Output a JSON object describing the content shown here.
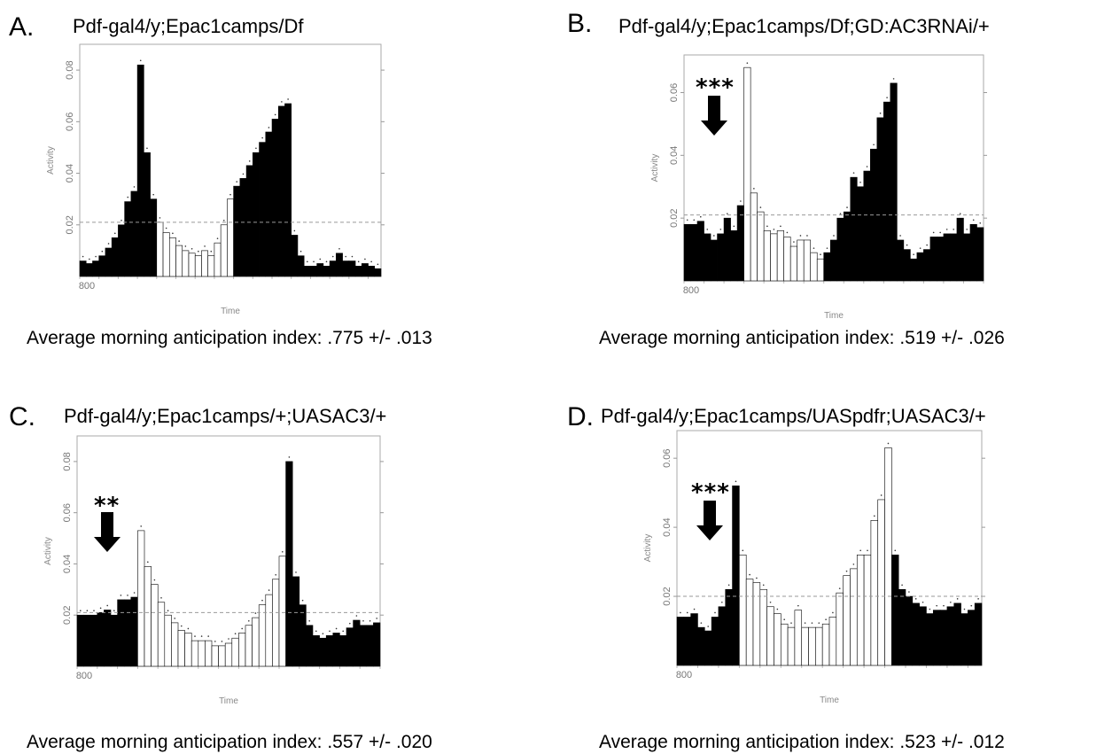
{
  "figure": {
    "panels": [
      {
        "letter": "A.",
        "title": "Pdf-gal4/y;Epac1camps/Df",
        "index_text": "Average morning anticipation index: .775 +/- .013",
        "significance": ""
      },
      {
        "letter": "B.",
        "title": "Pdf-gal4/y;Epac1camps/Df;GD:AC3RNAi/+",
        "index_text": "Average morning anticipation index: .519 +/- .026",
        "significance": "***"
      },
      {
        "letter": "C.",
        "title": "Pdf-gal4/y;Epac1camps/+;UASAC3/+",
        "index_text": "Average morning anticipation index: .557 +/- .020",
        "significance": "**"
      },
      {
        "letter": "D.",
        "title": "Pdf-gal4/y;Epac1camps/UASpdfr;UASAC3/+",
        "index_text": "Average morning anticipation index: .523 +/- .012",
        "significance": "***"
      }
    ]
  },
  "chart_data": [
    {
      "type": "bar",
      "title": "Pdf-gal4/y;Epac1camps/Df",
      "xlabel": "Time",
      "ylabel": "Activity",
      "x_tick_label": "800",
      "y_ticks": [
        "0.02",
        "0.04",
        "0.06",
        "0.08"
      ],
      "y_tick_values": [
        0.02,
        0.04,
        0.06,
        0.08
      ],
      "ylim": [
        0,
        0.09
      ],
      "reference_line": 0.021,
      "light_phase_bars": [
        12,
        24
      ],
      "values": [
        0.006,
        0.005,
        0.006,
        0.008,
        0.011,
        0.015,
        0.02,
        0.029,
        0.033,
        0.082,
        0.048,
        0.03,
        0.021,
        0.017,
        0.015,
        0.012,
        0.01,
        0.009,
        0.008,
        0.01,
        0.008,
        0.013,
        0.02,
        0.03,
        0.035,
        0.038,
        0.043,
        0.048,
        0.052,
        0.056,
        0.061,
        0.066,
        0.067,
        0.016,
        0.008,
        0.004,
        0.004,
        0.005,
        0.004,
        0.006,
        0.009,
        0.006,
        0.006,
        0.004,
        0.005,
        0.004,
        0.003
      ],
      "colors": {
        "dark": "#000000",
        "light": "#ffffff",
        "ref": "#999999"
      }
    },
    {
      "type": "bar",
      "title": "Pdf-gal4/y;Epac1camps/Df;GD:AC3RNAi/+",
      "xlabel": "Time",
      "ylabel": "Activity",
      "x_tick_label": "800",
      "y_ticks": [
        "0.02",
        "0.04",
        "0.06"
      ],
      "y_tick_values": [
        0.02,
        0.04,
        0.06
      ],
      "ylim": [
        0,
        0.072
      ],
      "reference_line": 0.021,
      "light_phase_bars": [
        9,
        21
      ],
      "values": [
        0.018,
        0.018,
        0.019,
        0.015,
        0.013,
        0.015,
        0.02,
        0.016,
        0.024,
        0.068,
        0.028,
        0.022,
        0.016,
        0.015,
        0.016,
        0.014,
        0.011,
        0.013,
        0.013,
        0.009,
        0.007,
        0.009,
        0.013,
        0.02,
        0.022,
        0.033,
        0.03,
        0.035,
        0.042,
        0.052,
        0.057,
        0.063,
        0.013,
        0.01,
        0.007,
        0.009,
        0.01,
        0.014,
        0.014,
        0.015,
        0.015,
        0.02,
        0.015,
        0.018,
        0.017
      ],
      "colors": {
        "dark": "#000000",
        "light": "#ffffff",
        "ref": "#999999"
      }
    },
    {
      "type": "bar",
      "title": "Pdf-gal4/y;Epac1camps/+;UASAC3/+",
      "xlabel": "Time",
      "ylabel": "Activity",
      "x_tick_label": "800",
      "y_ticks": [
        "0.02",
        "0.04",
        "0.06",
        "0.08"
      ],
      "y_tick_values": [
        0.02,
        0.04,
        0.06,
        0.08
      ],
      "ylim": [
        0,
        0.09
      ],
      "reference_line": 0.021,
      "light_phase_bars": [
        9,
        31
      ],
      "values": [
        0.02,
        0.02,
        0.02,
        0.021,
        0.022,
        0.02,
        0.026,
        0.026,
        0.027,
        0.053,
        0.039,
        0.032,
        0.025,
        0.02,
        0.017,
        0.014,
        0.013,
        0.01,
        0.01,
        0.01,
        0.008,
        0.008,
        0.009,
        0.011,
        0.013,
        0.016,
        0.019,
        0.024,
        0.028,
        0.034,
        0.043,
        0.08,
        0.035,
        0.024,
        0.016,
        0.012,
        0.011,
        0.012,
        0.013,
        0.012,
        0.015,
        0.018,
        0.016,
        0.016,
        0.017
      ],
      "colors": {
        "dark": "#000000",
        "light": "#ffffff",
        "ref": "#999999"
      }
    },
    {
      "type": "bar",
      "title": "Pdf-gal4/y;Epac1camps/UASpdfr;UASAC3/+",
      "xlabel": "Time",
      "ylabel": "Activity",
      "x_tick_label": "800",
      "y_ticks": [
        "0.02",
        "0.04",
        "0.06"
      ],
      "y_tick_values": [
        0.02,
        0.04,
        0.06
      ],
      "ylim": [
        0,
        0.068
      ],
      "reference_line": 0.02,
      "light_phase_bars": [
        9,
        31
      ],
      "values": [
        0.014,
        0.014,
        0.015,
        0.011,
        0.01,
        0.014,
        0.017,
        0.022,
        0.052,
        0.032,
        0.025,
        0.024,
        0.022,
        0.017,
        0.015,
        0.012,
        0.011,
        0.016,
        0.011,
        0.011,
        0.011,
        0.012,
        0.014,
        0.021,
        0.026,
        0.028,
        0.032,
        0.032,
        0.042,
        0.048,
        0.063,
        0.032,
        0.022,
        0.02,
        0.018,
        0.017,
        0.015,
        0.016,
        0.016,
        0.017,
        0.018,
        0.015,
        0.016,
        0.018
      ],
      "colors": {
        "dark": "#000000",
        "light": "#ffffff",
        "ref": "#999999"
      }
    }
  ]
}
